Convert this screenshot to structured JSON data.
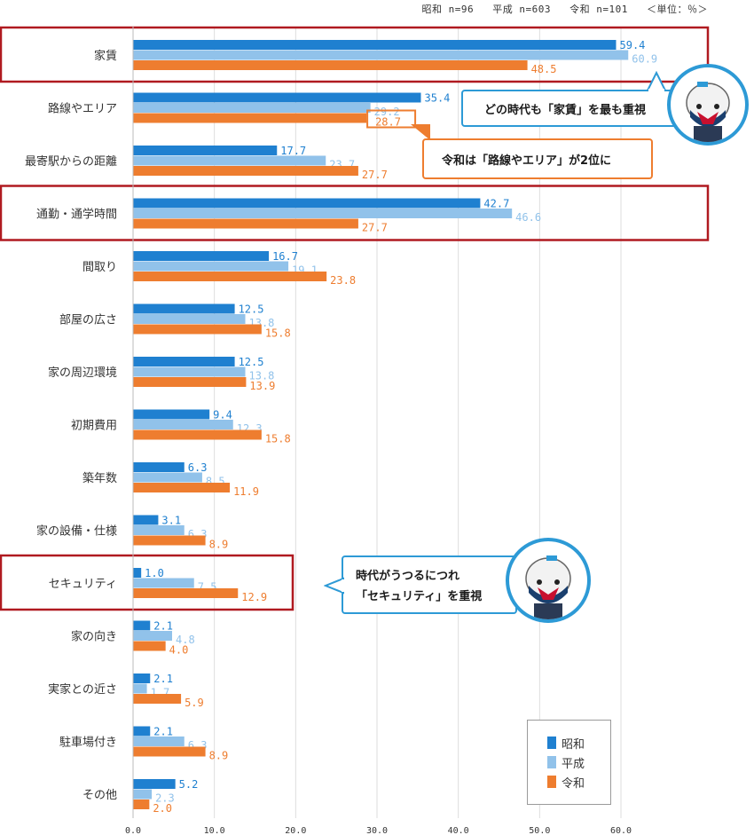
{
  "header": {
    "shouwa_n": "昭和 n=96",
    "heisei_n": "平成 n=603",
    "reiwa_n": "令和 n=101",
    "unit": "＜単位：％＞"
  },
  "colors": {
    "shouwa": "#1f80d0",
    "heisei": "#91c2ea",
    "reiwa": "#ee7d2f",
    "highlight": "#b01a20",
    "callout_blue": "#2d9ad6",
    "callout_orange": "#ee7d2f"
  },
  "chart_data": {
    "type": "bar",
    "orientation": "horizontal",
    "categories": [
      "家賃",
      "路線やエリア",
      "最寄駅からの距離",
      "通勤・通学時間",
      "間取り",
      "部屋の広さ",
      "家の周辺環境",
      "初期費用",
      "築年数",
      "家の設備・仕様",
      "セキュリティ",
      "家の向き",
      "実家との近さ",
      "駐車場付き",
      "その他"
    ],
    "series": [
      {
        "name": "昭和",
        "values": [
          59.4,
          35.4,
          17.7,
          42.7,
          16.7,
          12.5,
          12.5,
          9.4,
          6.3,
          3.1,
          1.0,
          2.1,
          2.1,
          2.1,
          5.2
        ],
        "labels": [
          "59.4",
          "35.4",
          "17.7",
          "42.7",
          "16.7",
          "12.5",
          "12.5",
          "9.4",
          "6.3",
          "3.1",
          "1.0",
          "2.1",
          "2.1",
          "2.1",
          "5.2"
        ]
      },
      {
        "name": "平成",
        "values": [
          60.9,
          29.2,
          23.7,
          46.6,
          19.1,
          13.8,
          13.8,
          12.3,
          8.5,
          6.3,
          7.5,
          4.8,
          1.7,
          6.3,
          2.3
        ],
        "labels": [
          "60.9",
          "29.2",
          "23.7",
          "46.6",
          "19.1",
          "13.8",
          "13.8",
          "12.3",
          "8.5",
          "6.3",
          "7.5",
          "4.8",
          "1.7",
          "6.3",
          "2.3"
        ]
      },
      {
        "name": "令和",
        "values": [
          48.5,
          28.7,
          27.7,
          27.7,
          23.8,
          15.8,
          13.9,
          15.8,
          11.9,
          8.9,
          12.9,
          4.0,
          5.9,
          8.9,
          2.0
        ],
        "labels": [
          "48.5",
          "28.7",
          "27.7",
          "27.7",
          "23.8",
          "15.8",
          "13.9",
          "15.8",
          "11.9",
          "8.9",
          "12.9",
          "4.0",
          "5.9",
          "8.9",
          "2.0"
        ]
      }
    ],
    "xlim": [
      0,
      60
    ],
    "xticks": [
      "0.0",
      "10.0",
      "20.0",
      "30.0",
      "40.0",
      "50.0",
      "60.0"
    ],
    "grid": true,
    "legend_position": "bottom-right",
    "highlighted_categories": [
      "家賃",
      "通勤・通学時間",
      "セキュリティ"
    ]
  },
  "legend": {
    "shouwa": "昭和",
    "heisei": "平成",
    "reiwa": "令和"
  },
  "callouts": {
    "rent": "どの時代も「家賃」を最も重視",
    "route": "令和は「路線やエリア」が2位に",
    "security_line1": "時代がうつるにつれ",
    "security_line2": "「セキュリティ」を重視"
  }
}
